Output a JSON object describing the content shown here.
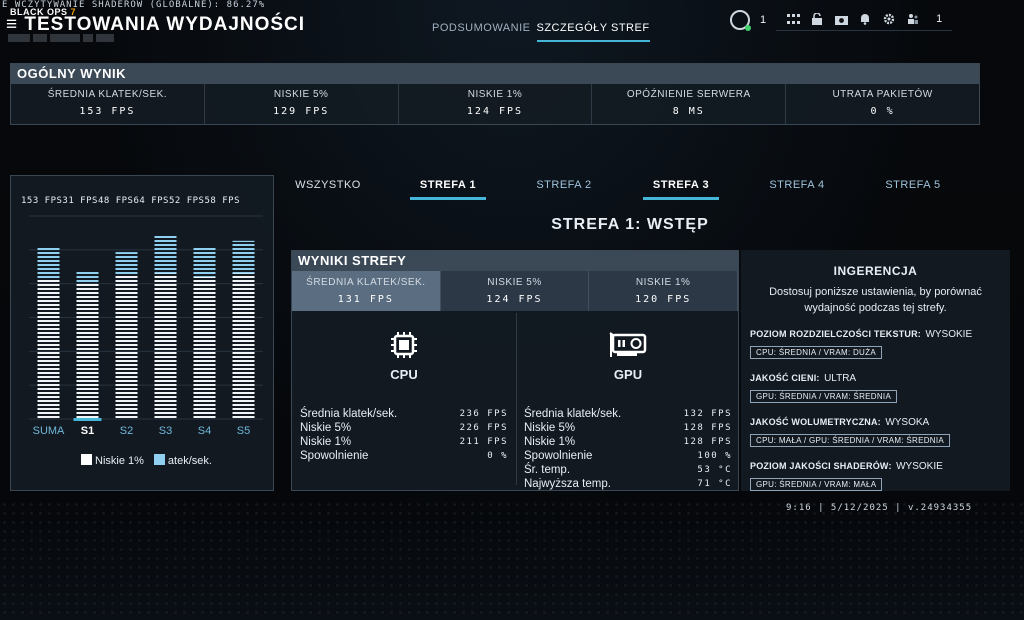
{
  "header": {
    "ticker": "E WCZYTYWANIE SHADERÓW (GLOBALNE): 86.27%",
    "brand": "BLACK OPS",
    "brand_num": "7",
    "title": "TESTOWANIA WYDAJNOŚCI",
    "tabs": [
      {
        "label": "PODSUMOWANIE",
        "active": false
      },
      {
        "label": "SZCZEGÓŁY STREF",
        "active": true
      }
    ],
    "rank_level": "1",
    "party_count": "1",
    "icons": [
      "grid-icon",
      "lock-icon",
      "camera-icon",
      "bell-icon",
      "gear-icon",
      "friends-icon"
    ]
  },
  "overall": {
    "title": "OGÓLNY WYNIK",
    "stats": [
      {
        "label": "ŚREDNIA KLATEK/SEK.",
        "value": "153 FPS"
      },
      {
        "label": "NISKIE 5%",
        "value": "129 FPS"
      },
      {
        "label": "NISKIE 1%",
        "value": "124 FPS"
      },
      {
        "label": "OPÓŹNIENIE SERWERA",
        "value": "8 MS"
      },
      {
        "label": "UTRATA PAKIETÓW",
        "value": "0 %"
      }
    ]
  },
  "chart_data": {
    "type": "bar",
    "title": "",
    "categories": [
      "SUMA",
      "S1",
      "S2",
      "S3",
      "S4",
      "S5"
    ],
    "selected": "S1",
    "top_labels": "153 FPS31 FPS48 FPS64 FPS52 FPS58 FPS",
    "series": [
      {
        "name": "Niskie 1%",
        "color": "#ffffff",
        "values": [
          124,
          120,
          128,
          129,
          126,
          129
        ]
      },
      {
        "name": "atek/sek.",
        "color": "#8fd0f0",
        "values": [
          153,
          131,
          148,
          164,
          152,
          158
        ]
      }
    ],
    "ylim": [
      0,
      180
    ],
    "grid": true,
    "legend": "bottom"
  },
  "zones": {
    "tabs": [
      {
        "label": "WSZYSTKO",
        "active": false
      },
      {
        "label": "STREFA 1",
        "active": true
      },
      {
        "label": "STREFA 2",
        "active": false
      },
      {
        "label": "STREFA 3",
        "active": true
      },
      {
        "label": "STREFA 4",
        "active": false
      },
      {
        "label": "STREFA 5",
        "active": false
      }
    ],
    "title": "STREFA 1: WSTĘP"
  },
  "results": {
    "title": "WYNIKI STREFY",
    "stats": [
      {
        "label": "ŚREDNIA KLATEK/SEK.",
        "value": "131 FPS"
      },
      {
        "label": "NISKIE 5%",
        "value": "124 FPS"
      },
      {
        "label": "NISKIE 1%",
        "value": "120 FPS"
      }
    ],
    "cpu": {
      "title": "CPU",
      "rows": [
        {
          "label": "Średnia klatek/sek.",
          "value": "236 FPS"
        },
        {
          "label": "Niskie 5%",
          "value": "226 FPS"
        },
        {
          "label": "Niskie 1%",
          "value": "211 FPS"
        },
        {
          "label": "Spowolnienie",
          "value": "0 %"
        }
      ]
    },
    "gpu": {
      "title": "GPU",
      "rows": [
        {
          "label": "Średnia klatek/sek.",
          "value": "132 FPS"
        },
        {
          "label": "Niskie 5%",
          "value": "128 FPS"
        },
        {
          "label": "Niskie 1%",
          "value": "128 FPS"
        },
        {
          "label": "Spowolnienie",
          "value": "100 %"
        },
        {
          "label": "Śr. temp.",
          "value": "53 °C"
        },
        {
          "label": "Najwyższa temp.",
          "value": "71 °C"
        }
      ]
    }
  },
  "interference": {
    "title": "INGERENCJA",
    "description": "Dostosuj poniższe ustawienia, by porównać wydajność podczas tej strefy.",
    "settings": [
      {
        "name": "POZIOM ROZDZIELCZOŚCI TEKSTUR:",
        "value": "WYSOKIE",
        "tag": "CPU: ŚREDNIA  /  VRAM: DUŻA"
      },
      {
        "name": "JAKOŚĆ CIENI:",
        "value": "ULTRA",
        "tag": "GPU: ŚREDNIA  /  VRAM: ŚREDNIA"
      },
      {
        "name": "JAKOŚĆ WOLUMETRYCZNA:",
        "value": "WYSOKA",
        "tag": "CPU: MAŁA  /  GPU: ŚREDNIA  /  VRAM: ŚREDNIA"
      },
      {
        "name": "POZIOM JAKOŚCI SHADERÓW:",
        "value": "WYSOKIE",
        "tag": "GPU: ŚREDNIA  /  VRAM: MAŁA"
      }
    ]
  },
  "footer": "9:16  |  5/12/2025  |  v.24934355"
}
